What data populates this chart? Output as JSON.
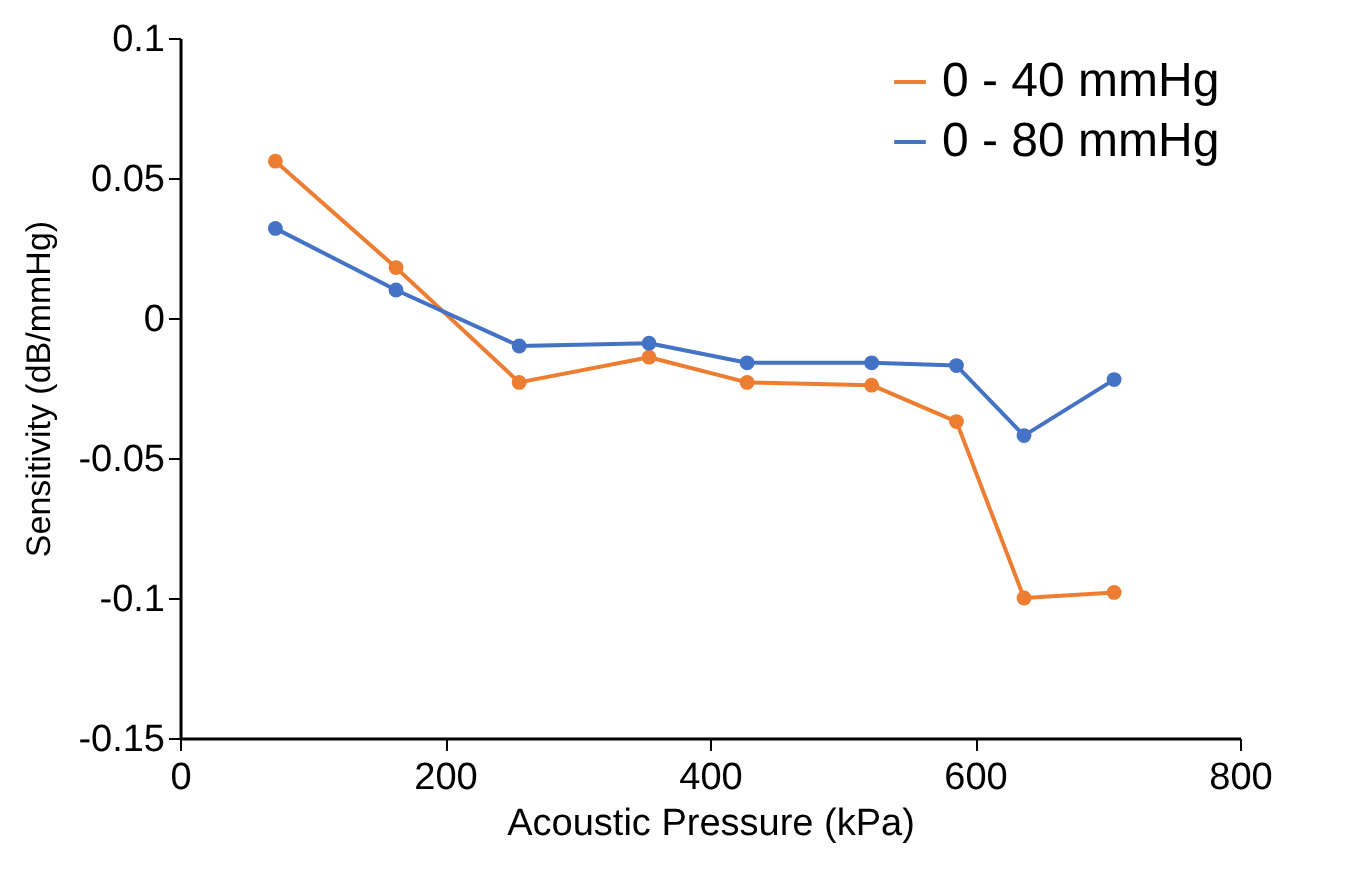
{
  "chart_data": {
    "type": "line",
    "xlabel": "Acoustic Pressure (kPa)",
    "ylabel": "Sensitivity (dB/mmHg)",
    "x": [
      72,
      163,
      256,
      354,
      428,
      522,
      586,
      637,
      705
    ],
    "series": [
      {
        "name": "0 - 40 mmHg",
        "color": "#ed7d31",
        "values": [
          0.056,
          0.018,
          -0.023,
          -0.014,
          -0.023,
          -0.024,
          -0.037,
          -0.1,
          -0.098
        ]
      },
      {
        "name": "0 - 80 mmHg",
        "color": "#4472c4",
        "values": [
          0.032,
          0.01,
          -0.01,
          -0.009,
          -0.016,
          -0.016,
          -0.017,
          -0.042,
          -0.022
        ]
      }
    ],
    "xlim": [
      0,
      800
    ],
    "xticks": [
      0,
      200,
      400,
      600,
      800
    ],
    "ylim": [
      -0.15,
      0.1
    ],
    "yticks": [
      -0.15,
      -0.1,
      -0.05,
      0,
      0.05,
      0.1
    ],
    "grid": false,
    "legend": "top right",
    "marker": "circle",
    "line_style": "solid"
  }
}
